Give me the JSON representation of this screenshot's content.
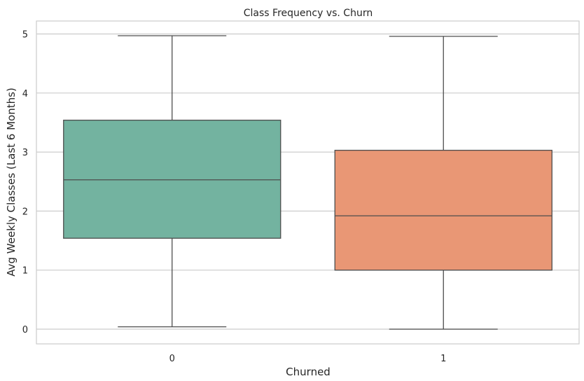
{
  "chart_data": {
    "type": "box",
    "title": "Class Frequency vs. Churn",
    "xlabel": "Churned",
    "ylabel": "Avg Weekly Classes (Last 6 Months)",
    "categories": [
      "0",
      "1"
    ],
    "ylim": [
      -0.25,
      5.2
    ],
    "yticks": [
      0,
      1,
      2,
      3,
      4,
      5
    ],
    "grid": true,
    "colors": [
      "#73b3a0",
      "#e99775"
    ],
    "boxes": [
      {
        "category": "0",
        "whisker_low": 0.04,
        "q1": 1.54,
        "median": 2.53,
        "q3": 3.54,
        "whisker_high": 4.97
      },
      {
        "category": "1",
        "whisker_low": 0.0,
        "q1": 1.0,
        "median": 1.92,
        "q3": 3.03,
        "whisker_high": 4.96
      }
    ]
  }
}
